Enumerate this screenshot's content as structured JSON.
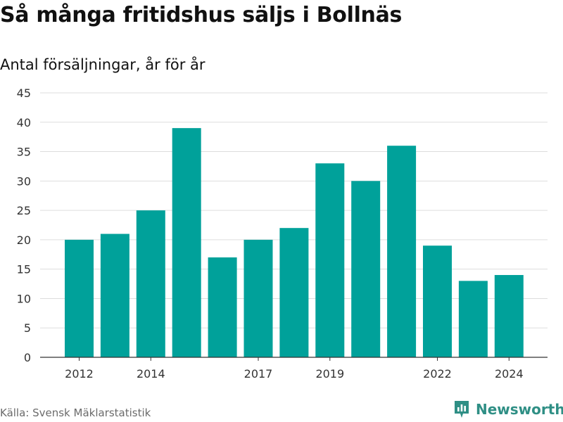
{
  "title": "Så många fritidshus säljs i Bollnäs",
  "subtitle": "Antal försäljningar, år för år",
  "source": "Källa: Svensk Mäklarstatistik",
  "brand": {
    "name": "Newsworthy",
    "logo_icon": "bar-chart-icon",
    "color": "#2f8f85"
  },
  "chart_data": {
    "type": "bar",
    "categories": [
      "2012",
      "2013",
      "2014",
      "2015",
      "2016",
      "2017",
      "2018",
      "2019",
      "2020",
      "2021",
      "2022",
      "2023",
      "2024"
    ],
    "values": [
      20,
      21,
      25,
      39,
      17,
      20,
      22,
      33,
      30,
      36,
      19,
      13,
      14
    ],
    "tick_labels_x": [
      "2012",
      "2014",
      "2017",
      "2019",
      "2022",
      "2024"
    ],
    "y_ticks": [
      0,
      5,
      10,
      15,
      20,
      25,
      30,
      35,
      40,
      45
    ],
    "ylim": [
      0,
      45
    ],
    "bar_color": "#00a19a",
    "grid": true
  }
}
